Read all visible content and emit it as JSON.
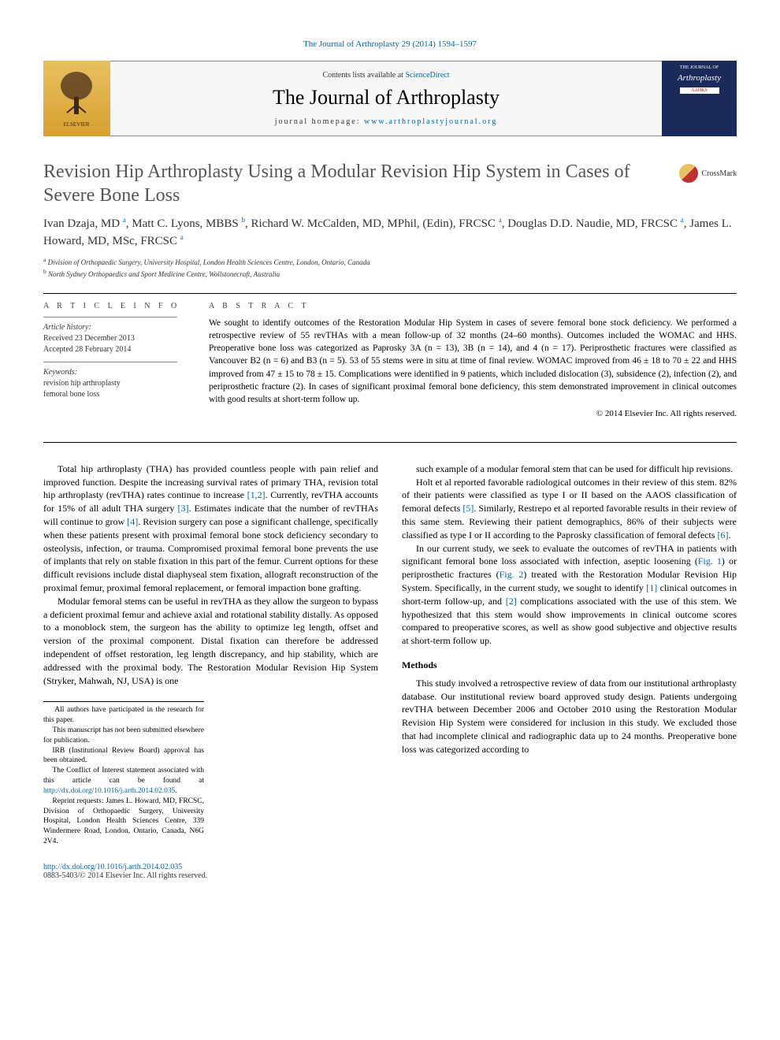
{
  "top_citation": "The Journal of Arthroplasty 29 (2014) 1594–1597",
  "header": {
    "contents_pre": "Contents lists available at ",
    "contents_link": "ScienceDirect",
    "journal": "The Journal of Arthroplasty",
    "homepage_pre": "journal homepage: ",
    "homepage_url": "www.arthroplastyjournal.org",
    "elsevier": "ELSEVIER",
    "cover_top": "THE JOURNAL OF",
    "cover_main": "Arthroplasty",
    "cover_org": "AAHKS"
  },
  "title": "Revision Hip Arthroplasty Using a Modular Revision Hip System in Cases of Severe Bone Loss",
  "crossmark": "CrossMark",
  "authors_html": "Ivan Dzaja, MD <sup>a</sup>, Matt C. Lyons, MBBS <sup>b</sup>, Richard W. McCalden, MD, MPhil, (Edin), FRCSC <sup>a</sup>, Douglas D.D. Naudie, MD, FRCSC <sup>a</sup>, James L. Howard, MD, MSc, FRCSC <sup>a</sup>",
  "affiliations": {
    "a": "Division of Orthopaedic Surgery, University Hospital, London Health Sciences Centre, London, Ontario, Canada",
    "b": "North Sydney Orthopaedics and Sport Medicine Centre, Wollstonecraft, Australia"
  },
  "article_info": {
    "heading": "A R T I C L E  I N F O",
    "history_label": "Article history:",
    "received": "Received 23 December 2013",
    "accepted": "Accepted 28 February 2014",
    "keywords_label": "Keywords:",
    "kw1": "revision hip arthroplasty",
    "kw2": "femoral bone loss"
  },
  "abstract": {
    "heading": "A B S T R A C T",
    "text": "We sought to identify outcomes of the Restoration Modular Hip System in cases of severe femoral bone stock deficiency. We performed a retrospective review of 55 revTHAs with a mean follow-up of 32 months (24–60 months). Outcomes included the WOMAC and HHS. Preoperative bone loss was categorized as Paprosky 3A (n = 13), 3B (n = 14), and 4 (n = 17). Periprosthetic fractures were classified as Vancouver B2 (n = 6) and B3 (n = 5). 53 of 55 stems were in situ at time of final review. WOMAC improved from 46 ± 18 to 70 ± 22 and HHS improved from 47 ± 15 to 78 ± 15. Complications were identified in 9 patients, which included dislocation (3), subsidence (2), infection (2), and periprosthetic fracture (2). In cases of significant proximal femoral bone deficiency, this stem demonstrated improvement in clinical outcomes with good results at short-term follow up.",
    "copyright": "© 2014 Elsevier Inc. All rights reserved."
  },
  "body": {
    "p1a": "Total hip arthroplasty (THA) has provided countless people with pain relief and improved function. Despite the increasing survival rates of primary THA, revision total hip arthroplasty (revTHA) rates continue to increase ",
    "r1": "[1,2]",
    "p1b": ". Currently, revTHA accounts for 15% of all adult THA surgery ",
    "r2": "[3]",
    "p1c": ". Estimates indicate that the number of revTHAs will continue to grow ",
    "r3": "[4]",
    "p1d": ". Revision surgery can pose a significant challenge, specifically when these patients present with proximal femoral bone stock deficiency secondary to osteolysis, infection, or trauma. Compromised proximal femoral bone prevents the use of implants that rely on stable fixation in this part of the femur. Current options for these difficult revisions include distal diaphyseal stem fixation, allograft reconstruction of the proximal femur, proximal femoral replacement, or femoral impaction bone grafting.",
    "p2": "Modular femoral stems can be useful in revTHA as they allow the surgeon to bypass a deficient proximal femur and achieve axial and rotational stability distally. As opposed to a monoblock stem, the surgeon has the ability to optimize leg length, offset and version of the proximal component. Distal fixation can therefore be addressed independent of offset restoration, leg length discrepancy, and hip stability, which are addressed with the proximal body. The Restoration Modular Revision Hip System (Stryker, Mahwah, NJ, USA) is one",
    "p3": "such example of a modular femoral stem that can be used for difficult hip revisions.",
    "p4a": "Holt et al reported favorable radiological outcomes in their review of this stem. 82% of their patients were classified as type I or II based on the AAOS classification of femoral defects ",
    "r4": "[5]",
    "p4b": ". Similarly, Restrepo et al reported favorable results in their review of this same stem. Reviewing their patient demographics, 86% of their subjects were classified as type I or II according to the Paprosky classification of femoral defects ",
    "r5": "[6]",
    "p4c": ".",
    "p5a": "In our current study, we seek to evaluate the outcomes of revTHA in patients with significant femoral bone loss associated with infection, aseptic loosening (",
    "f1": "Fig. 1",
    "p5b": ") or periprosthetic fractures (",
    "f2": "Fig. 2",
    "p5c": ") treated with the Restoration Modular Revision Hip System. Specifically, in the current study, we sought to identify ",
    "r6": "[1]",
    "p5d": " clinical outcomes in short-term follow-up, and ",
    "r7": "[2]",
    "p5e": " complications associated with the use of this stem. We hypothesized that this stem would show improvements in clinical outcome scores compared to preoperative scores, as well as show good subjective and objective results at short-term follow up.",
    "methods_head": "Methods",
    "p6": "This study involved a retrospective review of data from our institutional arthroplasty database. Our institutional review board approved study design. Patients undergoing revTHA between December 2006 and October 2010 using the Restoration Modular Revision Hip System were considered for inclusion in this study. We excluded those that had incomplete clinical and radiographic data up to 24 months. Preoperative bone loss was categorized according to"
  },
  "footnotes": {
    "f1": "All authors have participated in the research for this paper.",
    "f2": "This manuscript has not been submitted elsewhere for publication.",
    "f3": "IRB (Institutional Review Board) approval has been obtained.",
    "f4a": "The Conflict of Interest statement associated with this article can be found at ",
    "f4url": "http://dx.doi.org/10.1016/j.arth.2014.02.035",
    "f4b": ".",
    "f5": "Reprint requests: James L. Howard, MD, FRCSC, Division of Orthopaedic Surgery, University Hospital, London Health Sciences Centre, 339 Windermere Road, London, Ontario, Canada, N6G 2V4."
  },
  "doi": "http://dx.doi.org/10.1016/j.arth.2014.02.035",
  "issn": "0883-5403/© 2014 Elsevier Inc. All rights reserved.",
  "colors": {
    "link": "#0066aa",
    "text": "#000000",
    "muted": "#555555",
    "elsevier_bg_top": "#e8c060",
    "elsevier_bg_bot": "#d8a030",
    "cover_bg": "#1a2a5a"
  }
}
